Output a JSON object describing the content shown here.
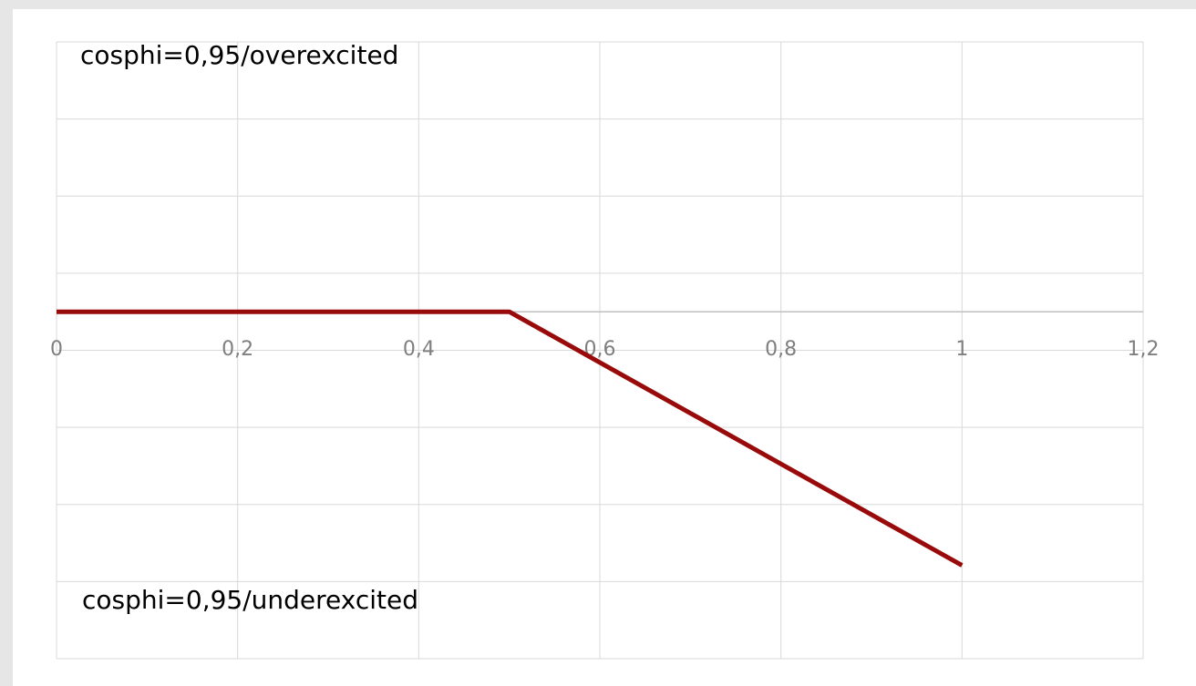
{
  "chart_data": {
    "type": "line",
    "annotations": [
      "cosphi=0,95/overexcited",
      "cosphi=0,95/underexcited"
    ],
    "x": [
      0,
      0.5,
      1
    ],
    "series": [
      {
        "color": "#990a0a",
        "values": [
          0,
          0,
          -0.329
        ]
      }
    ],
    "xlim": [
      0,
      1.2
    ],
    "xticks": [
      0,
      {
        "value": 0.2,
        "label": "0,2"
      },
      {
        "value": 0.4,
        "label": "0,4"
      },
      {
        "value": 0.6,
        "label": "0,6"
      },
      {
        "value": 0.8,
        "label": "0,8"
      },
      1,
      {
        "value": 1.2,
        "label": "1,2"
      }
    ],
    "ylim": [
      -0.45,
      0.35
    ],
    "yticks": [
      -0.45,
      -0.35,
      -0.25,
      -0.15,
      -0.05,
      0.05,
      0.15,
      0.25,
      0.35
    ],
    "grid": true
  }
}
